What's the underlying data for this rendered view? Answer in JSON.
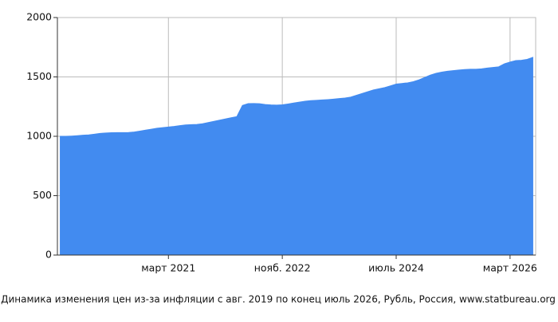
{
  "chart_data": {
    "type": "area",
    "title": "Динамика изменения цен из-за инфляции с авг. 2019 по конец июль 2026, Рубль, Россия, www.statbureau.org",
    "categories": [
      null,
      null,
      null,
      null,
      null,
      null,
      null,
      null,
      null,
      null,
      null,
      null,
      null,
      null,
      null,
      null,
      null,
      null,
      null,
      "март 2021",
      null,
      null,
      null,
      null,
      null,
      null,
      null,
      null,
      null,
      null,
      null,
      null,
      null,
      null,
      null,
      null,
      null,
      null,
      null,
      "нояб. 2022",
      null,
      null,
      null,
      null,
      null,
      null,
      null,
      null,
      null,
      null,
      null,
      null,
      null,
      null,
      null,
      null,
      null,
      null,
      null,
      "июль 2024",
      null,
      null,
      null,
      null,
      null,
      null,
      null,
      null,
      null,
      null,
      null,
      null,
      null,
      null,
      null,
      null,
      null,
      null,
      null,
      "март 2026",
      null,
      null,
      null,
      null
    ],
    "values": [
      1000,
      1000,
      1002,
      1005,
      1009,
      1012,
      1018,
      1024,
      1028,
      1030,
      1031,
      1031,
      1032,
      1036,
      1044,
      1052,
      1060,
      1068,
      1073,
      1078,
      1083,
      1090,
      1096,
      1098,
      1100,
      1106,
      1116,
      1126,
      1136,
      1146,
      1156,
      1165,
      1260,
      1275,
      1276,
      1274,
      1268,
      1264,
      1263,
      1265,
      1272,
      1280,
      1288,
      1295,
      1300,
      1303,
      1306,
      1309,
      1313,
      1318,
      1322,
      1330,
      1345,
      1360,
      1375,
      1390,
      1400,
      1410,
      1425,
      1440,
      1445,
      1450,
      1460,
      1475,
      1495,
      1515,
      1530,
      1540,
      1548,
      1553,
      1558,
      1562,
      1565,
      1565,
      1568,
      1575,
      1580,
      1585,
      1610,
      1625,
      1638,
      1640,
      1648,
      1665
    ],
    "color": "#428bf0",
    "ylim": [
      0,
      2000
    ],
    "yticks": [
      0,
      500,
      1000,
      1500,
      2000
    ],
    "grid": true
  }
}
